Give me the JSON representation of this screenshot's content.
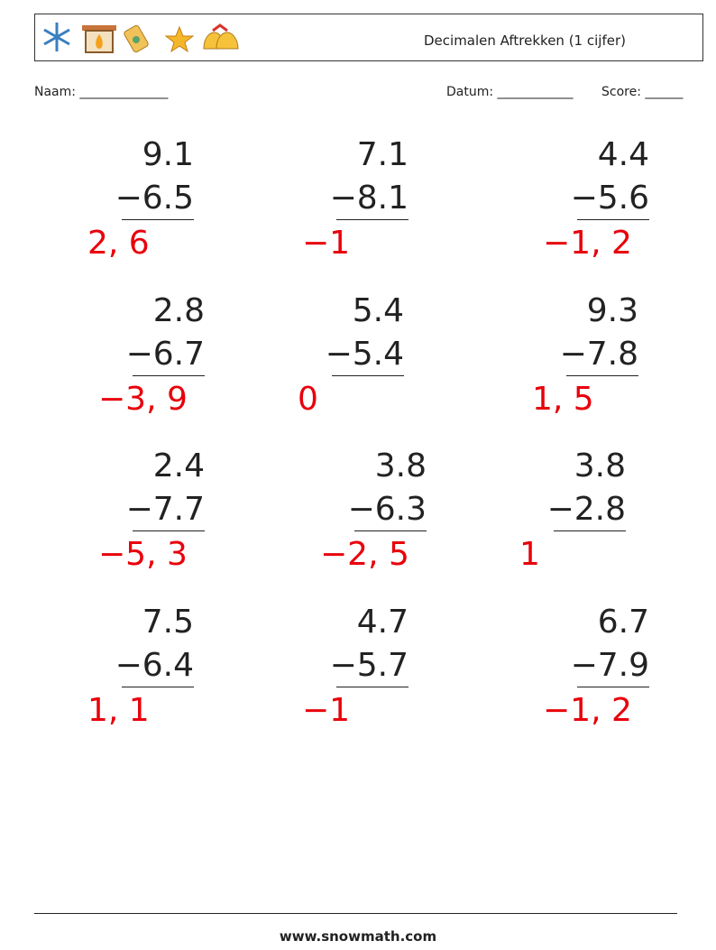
{
  "header": {
    "title": "Decimalen Aftrekken (1 cijfer)"
  },
  "fields": {
    "name": "Naam: ______________",
    "date": "Datum: ____________",
    "score": "Score: ______"
  },
  "problems": [
    {
      "top": "9.1",
      "bottom": "−6.5",
      "answer": "2, 6"
    },
    {
      "top": "7.1",
      "bottom": "−8.1",
      "answer": "−1"
    },
    {
      "top": "4.4",
      "bottom": "−5.6",
      "answer": "−1, 2"
    },
    {
      "top": "2.8",
      "bottom": "−6.7",
      "answer": "−3, 9"
    },
    {
      "top": "5.4",
      "bottom": "−5.4",
      "answer": "0"
    },
    {
      "top": "9.3",
      "bottom": "−7.8",
      "answer": "1, 5"
    },
    {
      "top": "2.4",
      "bottom": "−7.7",
      "answer": "−5, 3"
    },
    {
      "top": "3.8",
      "bottom": "−6.3",
      "answer": "−2, 5"
    },
    {
      "top": "3.8",
      "bottom": "−2.8",
      "answer": "1"
    },
    {
      "top": "7.5",
      "bottom": "−6.4",
      "answer": "1, 1"
    },
    {
      "top": "4.7",
      "bottom": "−5.7",
      "answer": "−1"
    },
    {
      "top": "6.7",
      "bottom": "−7.9",
      "answer": "−1, 2"
    }
  ],
  "footer": {
    "url": "www.snowmath.com"
  }
}
